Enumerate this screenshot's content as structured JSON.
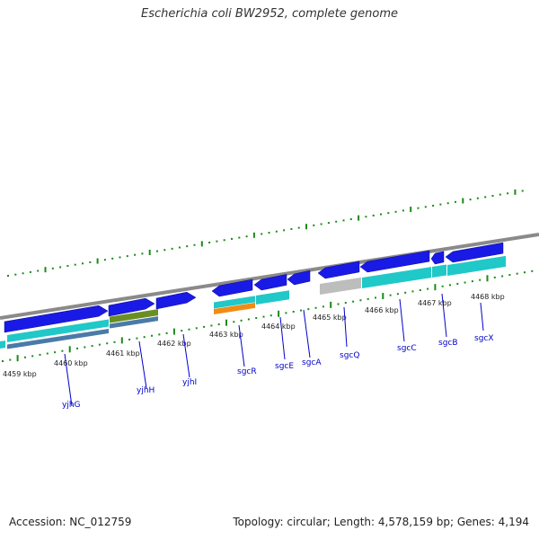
{
  "title": "Escherichia coli BW2952, complete genome",
  "footer": {
    "accession": "Accession: NC_012759",
    "topology": "Topology: circular; Length: 4,578,159 bp; Genes: 4,194"
  },
  "colors": {
    "backbone": "#8a8a8a",
    "cds_forward": "#1a1ae6",
    "cds_track": "#20c8c8",
    "orange_feature": "#f08c14",
    "olive_feature": "#6b8e23",
    "gray_feature": "#bdbdbd",
    "tick_green": "#1a8a1a",
    "gene_label": "#0000cc"
  },
  "tick_labels": [
    "4459 kbp",
    "4460 kbp",
    "4461 kbp",
    "4462 kbp",
    "4463 kbp",
    "4464 kbp",
    "4465 kbp",
    "4466 kbp",
    "4467 kbp",
    "4468 kbp"
  ],
  "genes": [
    "yjhG",
    "yjhH",
    "yjhI",
    "sgcR",
    "sgcE",
    "sgcA",
    "sgcQ",
    "sgcC",
    "sgcB",
    "sgcX"
  ]
}
